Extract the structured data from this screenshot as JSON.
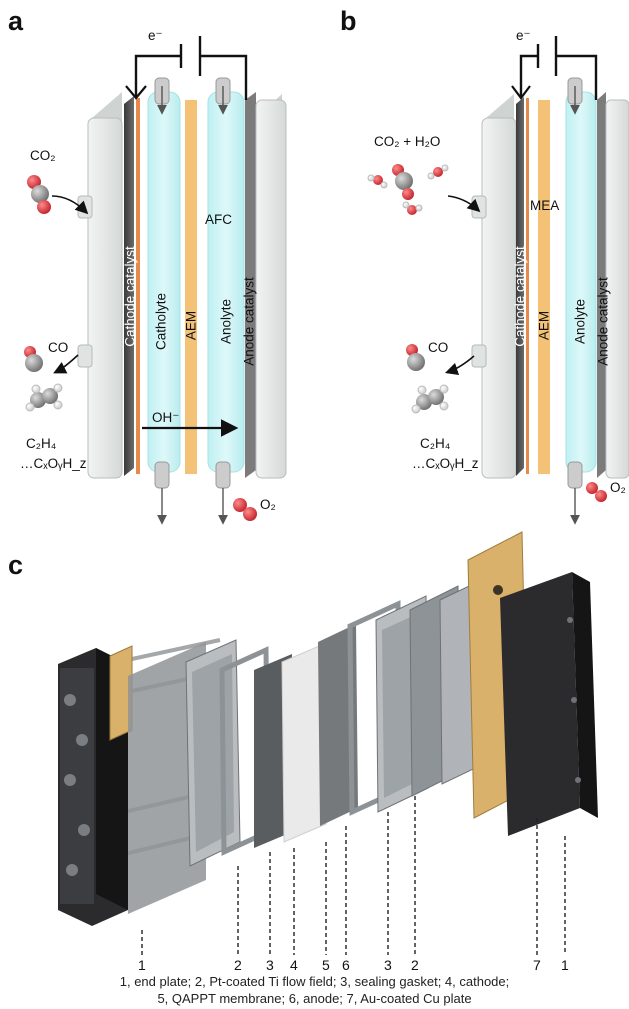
{
  "panel_a": {
    "letter": "a",
    "electron": "e⁻",
    "gas_in": "CO₂",
    "cell_type": "AFC",
    "layers": [
      "Cathode catalyst",
      "Catholyte",
      "AEM",
      "Anolyte",
      "Anode catalyst"
    ],
    "ion": "OH⁻",
    "products": [
      "CO",
      "C₂H₄",
      "…CₓOᵧH_z"
    ],
    "anode_product": "O₂"
  },
  "panel_b": {
    "letter": "b",
    "electron": "e⁻",
    "gas_in": "CO₂ + H₂O",
    "cell_type": "MEA",
    "layers": [
      "Cathode catalyst",
      "AEM",
      "Anolyte",
      "Anode catalyst"
    ],
    "products": [
      "CO",
      "C₂H₄",
      "…CₓOᵧH_z"
    ],
    "anode_product": "O₂"
  },
  "panel_c": {
    "letter": "c",
    "part_numbers": [
      "1",
      "2",
      "3",
      "4",
      "5",
      "6",
      "3",
      "2",
      "7",
      "1"
    ],
    "caption_line1": "1, end plate; 2, Pt-coated Ti flow field; 3, sealing gasket; 4, cathode;",
    "caption_line2": "5, QAPPT membrane; 6, anode; 7, Au-coated Cu plate"
  },
  "colors": {
    "catholyte": "#c8f1f3",
    "aem": "#f3c277",
    "copper": "#e58a4a",
    "plate": "#e4e7e6",
    "oxygen_atom": "#d9353b",
    "carbon_atom": "#8a8a8a",
    "gold_plate": "#d9b16a"
  }
}
